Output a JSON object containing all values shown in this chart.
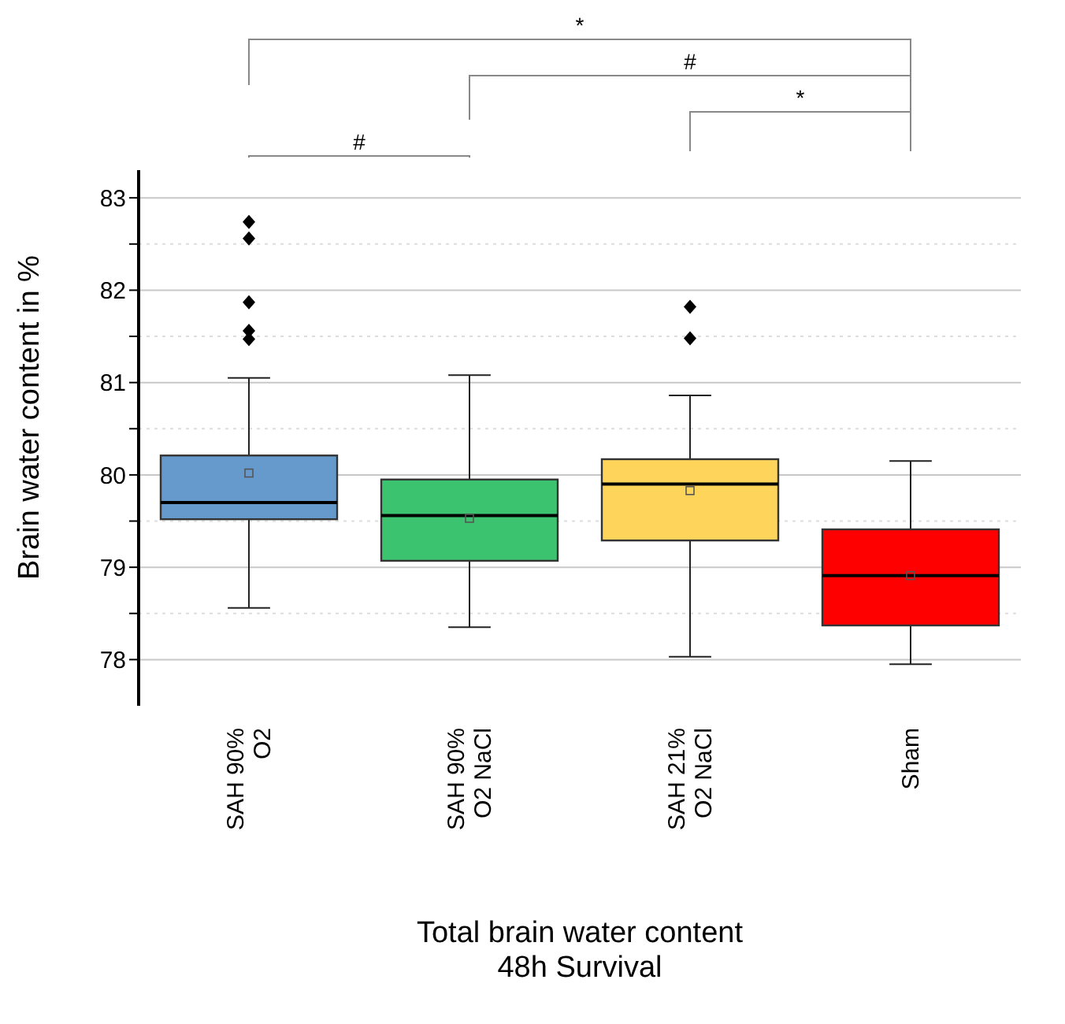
{
  "chart_data": {
    "type": "box",
    "xlabel": "Total brain water content\n48h Survival",
    "ylabel": "Brain water content in %",
    "categories": [
      "SAH 90% O2",
      "SAH 90% O2 NaCl",
      "SAH 21% O2 NaCl",
      "Sham"
    ],
    "colors": [
      "#6699cc",
      "#3cc370",
      "#ffd45a",
      "#ff0000"
    ],
    "boxes": [
      {
        "low": 78.56,
        "q1": 79.52,
        "median": 79.7,
        "q3": 80.21,
        "high": 81.05,
        "mean": 80.02,
        "outliers": [
          82.74,
          82.56,
          81.87,
          81.56,
          81.47
        ]
      },
      {
        "low": 78.35,
        "q1": 79.07,
        "median": 79.56,
        "q3": 79.95,
        "high": 81.08,
        "mean": 79.53
      },
      {
        "low": 78.03,
        "q1": 79.29,
        "median": 79.9,
        "q3": 80.17,
        "high": 80.86,
        "mean": 79.83,
        "outliers": [
          81.82,
          81.48
        ]
      },
      {
        "low": 77.95,
        "q1": 78.37,
        "median": 78.91,
        "q3": 79.41,
        "high": 80.15,
        "mean": 78.91
      }
    ],
    "ylim": [
      77.5,
      83.3
    ],
    "yticks": [
      78,
      {
        "value": 78.5,
        "label": null
      },
      79,
      {
        "value": 79.5,
        "label": null
      },
      80,
      {
        "value": 80.5,
        "label": null
      },
      81,
      {
        "value": 81.5,
        "label": null
      },
      82,
      {
        "value": 82.5,
        "label": null
      },
      83
    ],
    "grid": "y",
    "marker": "diamond",
    "annotations": [
      "*",
      "#",
      "*",
      "#"
    ]
  }
}
